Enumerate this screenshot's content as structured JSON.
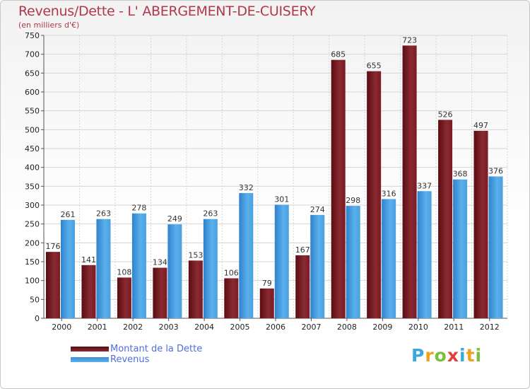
{
  "colors": {
    "dette": "#7a1a22",
    "revenus": "#3a8fd8",
    "title": "#b0384a",
    "legend_text": "#4f6ee0"
  },
  "chart_data": {
    "type": "bar",
    "title": "Revenus/Dette - L' ABERGEMENT-DE-CUISERY",
    "subtitle": "(en milliers d'€)",
    "categories": [
      "2000",
      "2001",
      "2002",
      "2003",
      "2004",
      "2005",
      "2006",
      "2007",
      "2008",
      "2009",
      "2010",
      "2011",
      "2012"
    ],
    "series": [
      {
        "name": "Montant de la Dette",
        "values": [
          176,
          141,
          108,
          134,
          153,
          106,
          79,
          167,
          685,
          655,
          723,
          526,
          497
        ]
      },
      {
        "name": "Revenus",
        "values": [
          261,
          263,
          278,
          249,
          263,
          332,
          301,
          274,
          298,
          316,
          337,
          368,
          376
        ]
      }
    ],
    "ylim": [
      0,
      750
    ],
    "yticks": [
      0,
      50,
      100,
      150,
      200,
      250,
      300,
      350,
      400,
      450,
      500,
      550,
      600,
      650,
      700,
      750
    ],
    "grid": true,
    "legend": "bottom-left"
  },
  "logo": {
    "letters": [
      "P",
      "r",
      "o",
      "x",
      "i",
      "t",
      "i"
    ],
    "colors": [
      "#3aa7e0",
      "#f0a020",
      "#7bbf3a",
      "#e04040",
      "#3aa7e0",
      "#f0a020",
      "#7bbf3a"
    ]
  }
}
